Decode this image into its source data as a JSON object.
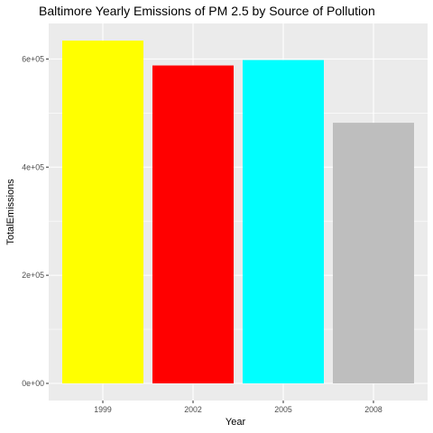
{
  "chart_data": {
    "type": "bar",
    "title": "Baltimore Yearly Emissions of PM 2.5 by Source of Pollution",
    "xlabel": "Year",
    "ylabel": "TotalEmissions",
    "categories": [
      "1999",
      "2002",
      "2005",
      "2008"
    ],
    "values": [
      634000,
      588000,
      598000,
      482000
    ],
    "bar_colors": [
      "#FFFF00",
      "#FF0000",
      "#00FFFF",
      "#BEBEBE"
    ],
    "ylim": [
      -31700,
      665700
    ],
    "yticks": [
      0,
      200000,
      400000,
      600000
    ],
    "ytick_labels": [
      "0e+00",
      "2e+05",
      "4e+05",
      "6e+05"
    ],
    "grid": true,
    "legend": "none",
    "background_color": "#EBEBEB",
    "gridline_color": "#FFFFFF"
  }
}
